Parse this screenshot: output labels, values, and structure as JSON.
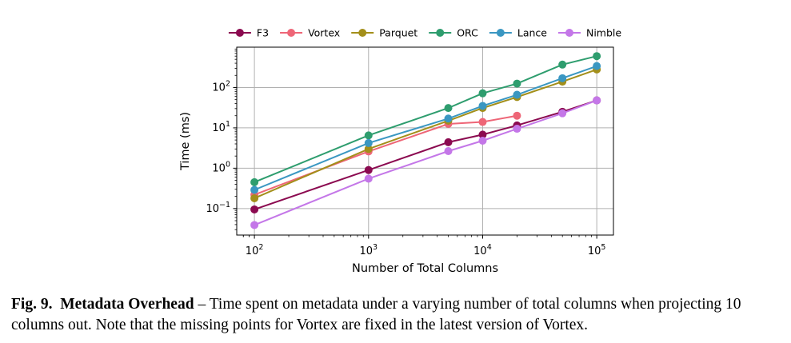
{
  "chart_data": {
    "type": "line",
    "xscale": "log",
    "yscale": "log",
    "xlabel": "Number of Total Columns",
    "ylabel": "Time (ms)",
    "xlim": [
      70,
      140000
    ],
    "ylim": [
      0.022,
      1000
    ],
    "xticks": [
      {
        "value": 100,
        "base": "10",
        "exp": "2"
      },
      {
        "value": 1000,
        "base": "10",
        "exp": "3"
      },
      {
        "value": 10000,
        "base": "10",
        "exp": "4"
      },
      {
        "value": 100000,
        "base": "10",
        "exp": "5"
      }
    ],
    "yticks": [
      {
        "value": 0.1,
        "base": "10",
        "exp": "−1"
      },
      {
        "value": 1,
        "base": "10",
        "exp": "0"
      },
      {
        "value": 10,
        "base": "10",
        "exp": "1"
      },
      {
        "value": 100,
        "base": "10",
        "exp": "2"
      }
    ],
    "grid": true,
    "legend_position": "top-center",
    "series": [
      {
        "name": "F3",
        "color": "#8b0a50",
        "x": [
          100,
          1000,
          5000,
          10000,
          20000,
          50000,
          100000
        ],
        "y": [
          0.095,
          0.9,
          4.4,
          6.8,
          11.5,
          25,
          48
        ]
      },
      {
        "name": "Vortex",
        "color": "#ee6677",
        "x": [
          100,
          1000,
          5000,
          10000,
          20000
        ],
        "y": [
          0.22,
          2.6,
          12.5,
          14,
          20
        ]
      },
      {
        "name": "Parquet",
        "color": "#a38f1a",
        "x": [
          100,
          1000,
          5000,
          10000,
          20000,
          50000,
          100000
        ],
        "y": [
          0.18,
          3.0,
          15,
          31,
          58,
          140,
          280
        ]
      },
      {
        "name": "ORC",
        "color": "#2e9d6e",
        "x": [
          100,
          1000,
          5000,
          10000,
          20000,
          50000,
          100000
        ],
        "y": [
          0.45,
          6.5,
          31,
          72,
          125,
          370,
          600
        ]
      },
      {
        "name": "Lance",
        "color": "#3a97c2",
        "x": [
          100,
          1000,
          5000,
          10000,
          20000,
          50000,
          100000
        ],
        "y": [
          0.29,
          4.2,
          17,
          35,
          66,
          170,
          340
        ]
      },
      {
        "name": "Nimble",
        "color": "#c477e8",
        "x": [
          100,
          1000,
          5000,
          10000,
          20000,
          50000,
          100000
        ],
        "y": [
          0.039,
          0.55,
          2.65,
          4.8,
          9.5,
          23,
          48
        ]
      }
    ]
  },
  "caption": {
    "label": "Fig. 9.",
    "title": "Metadata Overhead",
    "text": " – Time spent on metadata under a varying number of total columns when projecting 10 columns out. Note that the missing points for Vortex are fixed in the latest version of Vortex."
  }
}
